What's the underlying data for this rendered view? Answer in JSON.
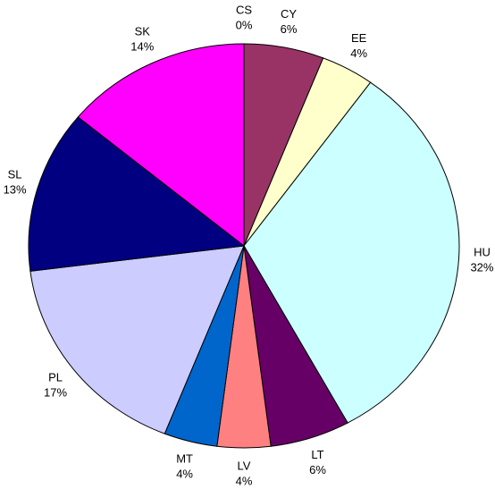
{
  "chart_data": {
    "type": "pie",
    "categories": [
      "CS",
      "CY",
      "EE",
      "HU",
      "LT",
      "LV",
      "MT",
      "PL",
      "SL",
      "SK"
    ],
    "values": [
      0,
      6,
      4,
      32,
      6,
      4,
      4,
      17,
      13,
      14
    ],
    "value_labels": [
      "0%",
      "6%",
      "4%",
      "32%",
      "6%",
      "4%",
      "4%",
      "17%",
      "13%",
      "14%"
    ],
    "colors": [
      "#9999ff",
      "#993366",
      "#ffffcc",
      "#ccffff",
      "#660066",
      "#ff8080",
      "#0066cc",
      "#ccccff",
      "#000080",
      "#ff00ff"
    ]
  }
}
